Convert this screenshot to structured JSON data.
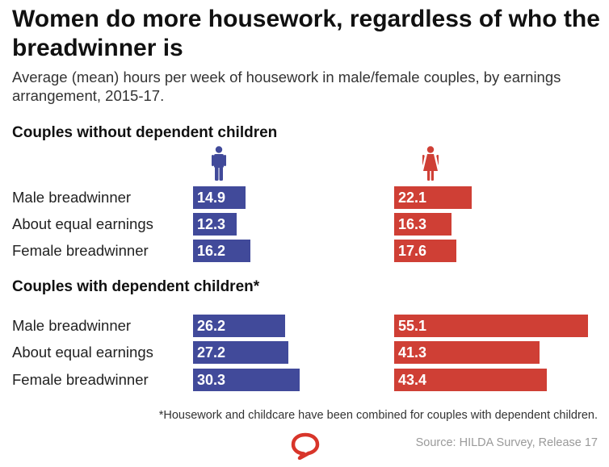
{
  "title": "Women do more housework, regardless of who the breadwinner is",
  "subtitle": "Average (mean) hours per week of housework in male/female couples, by earnings arrangement, 2015-17.",
  "footnote": "*Housework and childcare have been combined for couples with dependent children.",
  "source": "Source: HILDA Survey, Release 17",
  "icons": {
    "men": "man-icon",
    "women": "woman-icon",
    "logo": "speech-bubble-logo-icon"
  },
  "colors": {
    "men": "#414a9a",
    "women": "#cf3f35",
    "logo": "#d8352a"
  },
  "chart_data": [
    {
      "type": "bar",
      "orientation": "horizontal",
      "title": "Couples without dependent children",
      "categories": [
        "Male breadwinner",
        "About equal earnings",
        "Female breadwinner"
      ],
      "series": [
        {
          "icon": "man-icon",
          "values": [
            14.9,
            12.3,
            16.2
          ]
        },
        {
          "icon": "woman-icon",
          "values": [
            22.1,
            16.3,
            17.6
          ]
        }
      ],
      "data_labels": true,
      "grid": false
    },
    {
      "type": "bar",
      "orientation": "horizontal",
      "title": "Couples with dependent children*",
      "categories": [
        "Male breadwinner",
        "About equal earnings",
        "Female breadwinner"
      ],
      "series": [
        {
          "icon": "man-icon",
          "values": [
            26.2,
            27.2,
            30.3
          ]
        },
        {
          "icon": "woman-icon",
          "values": [
            55.1,
            41.3,
            43.4
          ]
        }
      ],
      "data_labels": true,
      "grid": false
    }
  ]
}
